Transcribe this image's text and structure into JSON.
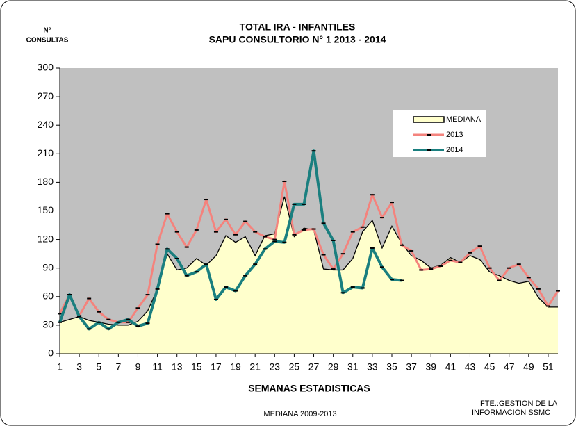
{
  "chart_data": {
    "type": "line",
    "title": "TOTAL IRA -  INFANTILES",
    "subtitle": "SAPU CONSULTORIO N° 1   2013 - 2014",
    "y_label_line1": "N°",
    "y_label_line2": "CONSULTAS",
    "x_label": "SEMANAS ESTADISTICAS",
    "note": "MEDIANA 2009-2013",
    "source_line1": "FTE.:GESTION DE LA",
    "source_line2": "INFORMACION  SSMC",
    "x": [
      1,
      2,
      3,
      4,
      5,
      6,
      7,
      8,
      9,
      10,
      11,
      12,
      13,
      14,
      15,
      16,
      17,
      18,
      19,
      20,
      21,
      22,
      23,
      24,
      25,
      26,
      27,
      28,
      29,
      30,
      31,
      32,
      33,
      34,
      35,
      36,
      37,
      38,
      39,
      40,
      41,
      42,
      43,
      44,
      45,
      46,
      47,
      48,
      49,
      50,
      51,
      52
    ],
    "xlim": [
      1,
      52
    ],
    "xticks": [
      1,
      3,
      5,
      7,
      9,
      11,
      13,
      15,
      17,
      19,
      21,
      23,
      25,
      27,
      29,
      31,
      33,
      35,
      37,
      39,
      41,
      43,
      45,
      47,
      49,
      51
    ],
    "ylim": [
      0,
      300
    ],
    "yticks": [
      0,
      30,
      60,
      90,
      120,
      150,
      180,
      210,
      240,
      270,
      300
    ],
    "series": [
      {
        "name": "MEDIANA",
        "color": "#ffffcc",
        "values": [
          33,
          36,
          39,
          35,
          33,
          31,
          30,
          30,
          34,
          45,
          68,
          105,
          88,
          90,
          100,
          93,
          103,
          124,
          117,
          123,
          103,
          124,
          126,
          165,
          123,
          132,
          130,
          89,
          88,
          88,
          100,
          128,
          140,
          111,
          134,
          116,
          103,
          98,
          90,
          93,
          101,
          96,
          103,
          99,
          86,
          82,
          77,
          74,
          76,
          59,
          49,
          49
        ]
      },
      {
        "name": "2013",
        "color": "#f4837d",
        "values": [
          42,
          62,
          40,
          58,
          44,
          36,
          33,
          33,
          48,
          62,
          115,
          147,
          128,
          112,
          130,
          162,
          128,
          141,
          125,
          139,
          128,
          123,
          120,
          181,
          125,
          130,
          131,
          104,
          89,
          105,
          128,
          133,
          167,
          143,
          159,
          114,
          108,
          88,
          89,
          92,
          98,
          96,
          106,
          113,
          90,
          77,
          90,
          94,
          80,
          68,
          50,
          66
        ]
      },
      {
        "name": "2014",
        "color": "#1a7f7f",
        "values": [
          33,
          62,
          39,
          26,
          33,
          26,
          33,
          36,
          29,
          32,
          68,
          110,
          100,
          82,
          86,
          94,
          57,
          70,
          66,
          82,
          94,
          110,
          118,
          117,
          157,
          157,
          213,
          137,
          119,
          64,
          70,
          69,
          111,
          91,
          78,
          77,
          null,
          null,
          null,
          null,
          null,
          null,
          null,
          null,
          null,
          null,
          null,
          null,
          null,
          null,
          null,
          null
        ]
      }
    ]
  }
}
